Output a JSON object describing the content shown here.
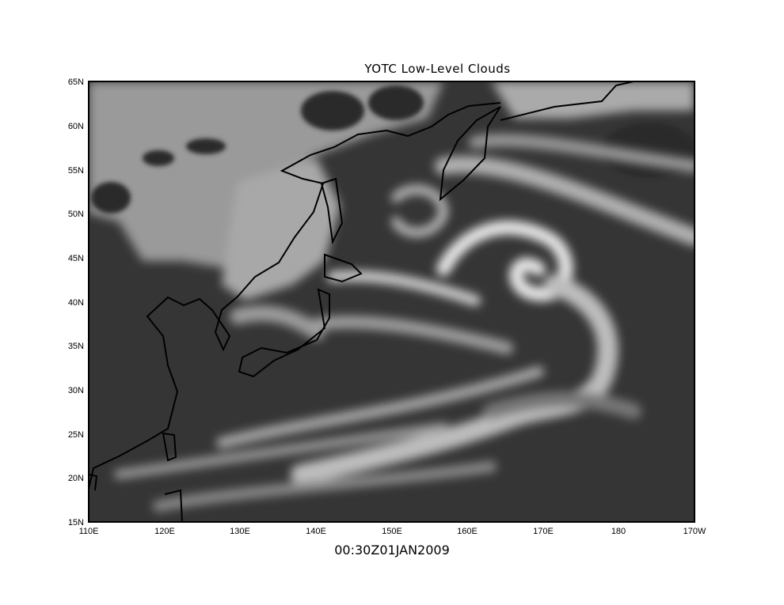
{
  "map": {
    "title": "YOTC  Low-Level Clouds",
    "timestamp": "00:30Z01JAN2009",
    "projection": "latitude-longitude",
    "extent": {
      "lon": [
        110,
        190
      ],
      "lat": [
        15,
        65
      ]
    },
    "lat_labels": [
      "15N",
      "20N",
      "25N",
      "30N",
      "35N",
      "40N",
      "45N",
      "50N",
      "55N",
      "60N",
      "65N"
    ],
    "lon_labels": [
      "110E",
      "120E",
      "130E",
      "140E",
      "150E",
      "160E",
      "170E",
      "180",
      "170W"
    ],
    "colormap": "grayscale",
    "colors": {
      "clear": "#333333",
      "low_cloud": "#bbbbbb",
      "dense_cloud": "#eeeeee",
      "coastline": "#000000"
    }
  }
}
